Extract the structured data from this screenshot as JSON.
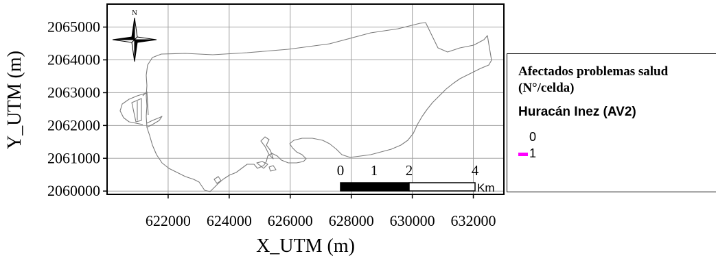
{
  "map": {
    "x_axis_label": "X_UTM (m)",
    "y_axis_label": "Y_UTM (m)",
    "x_ticks": [
      "622000",
      "624000",
      "626000",
      "628000",
      "630000",
      "632000"
    ],
    "y_ticks": [
      "2065000",
      "2064000",
      "2063000",
      "2062000",
      "2061000",
      "2060000"
    ],
    "x_range": [
      620000,
      633000
    ],
    "y_range": [
      2059900,
      2065700
    ],
    "north_arrow_label": "N",
    "scale_bar": {
      "labels": [
        "0",
        "1",
        "2",
        "4"
      ],
      "unit": "Km"
    }
  },
  "legend": {
    "title": "Afectados problemas salud (N°/celda)",
    "layer_name": "Huracán Inez (AV2)",
    "classes": [
      {
        "label": "0",
        "color": ""
      },
      {
        "label": "1",
        "color": "#ff00ff"
      }
    ]
  },
  "colors": {
    "outline": "#7a7a7a",
    "grid": "#a0a0a0",
    "frame": "#000000",
    "class_1": "#ff00ff"
  }
}
